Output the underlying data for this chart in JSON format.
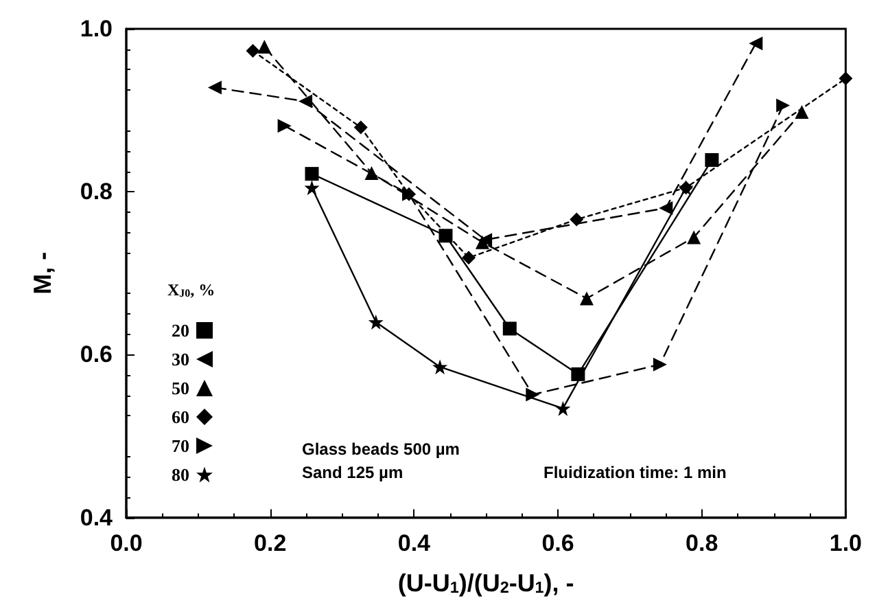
{
  "chart_data": {
    "type": "line",
    "xlabel": "(U-U$_{1}$)/(U$_{2}$-U$_{1}$), -",
    "ylabel": "M, -",
    "legend_title": "X$_{J0}$, %",
    "legend": "left",
    "grid": false,
    "xlim": [
      0,
      1
    ],
    "xticks": [
      {
        "value": 0,
        "label": "0.0"
      },
      {
        "value": 0.2,
        "label": "0.2"
      },
      {
        "value": 0.4,
        "label": "0.4"
      },
      {
        "value": 0.6,
        "label": "0.6"
      },
      {
        "value": 0.8,
        "label": "0.8"
      },
      {
        "value": 1,
        "label": "1.0"
      }
    ],
    "ylim": [
      0.4,
      1
    ],
    "yticks": [
      {
        "value": 0.4,
        "label": "0.4"
      },
      {
        "value": 0.6,
        "label": "0.6"
      },
      {
        "value": 0.8,
        "label": "0.8"
      },
      {
        "value": 1,
        "label": "1.0"
      }
    ],
    "annotations": [
      "Glass beads 500 µm",
      "Sand 125 µm",
      "Fluidization time: 1 min"
    ],
    "series": [
      {
        "name": "20",
        "color": "#000000",
        "marker": "square",
        "line_style": "solid",
        "x": [
          0.258,
          0.444,
          0.533,
          0.628,
          0.814
        ],
        "values": [
          0.822,
          0.746,
          0.632,
          0.576,
          0.839
        ]
      },
      {
        "name": "30",
        "color": "#000000",
        "marker": "triangle-left",
        "line_style": "dashed",
        "x": [
          0.123,
          0.249,
          0.499,
          0.75,
          0.875
        ],
        "values": [
          0.928,
          0.911,
          0.741,
          0.78,
          0.982
        ]
      },
      {
        "name": "50",
        "color": "#000000",
        "marker": "triangle",
        "line_style": "dashed",
        "x": [
          0.192,
          0.341,
          0.495,
          0.64,
          0.789,
          0.939
        ],
        "values": [
          0.978,
          0.823,
          0.738,
          0.669,
          0.744,
          0.898
        ]
      },
      {
        "name": "60",
        "color": "#000000",
        "marker": "diamond",
        "line_style": "dotted",
        "x": [
          0.176,
          0.326,
          0.393,
          0.476,
          0.626,
          0.778,
          1.0
        ],
        "values": [
          0.973,
          0.879,
          0.797,
          0.719,
          0.766,
          0.805,
          0.939
        ]
      },
      {
        "name": "70",
        "color": "#000000",
        "marker": "triangle-right",
        "line_style": "dashed",
        "x": [
          0.22,
          0.393,
          0.565,
          0.742,
          0.913
        ],
        "values": [
          0.881,
          0.797,
          0.551,
          0.588,
          0.906
        ]
      },
      {
        "name": "80",
        "color": "#000000",
        "marker": "star",
        "line_style": "solid",
        "x": [
          0.258,
          0.347,
          0.436,
          0.607,
          0.778
        ],
        "values": [
          0.805,
          0.64,
          0.585,
          0.534,
          0.805
        ]
      }
    ]
  }
}
